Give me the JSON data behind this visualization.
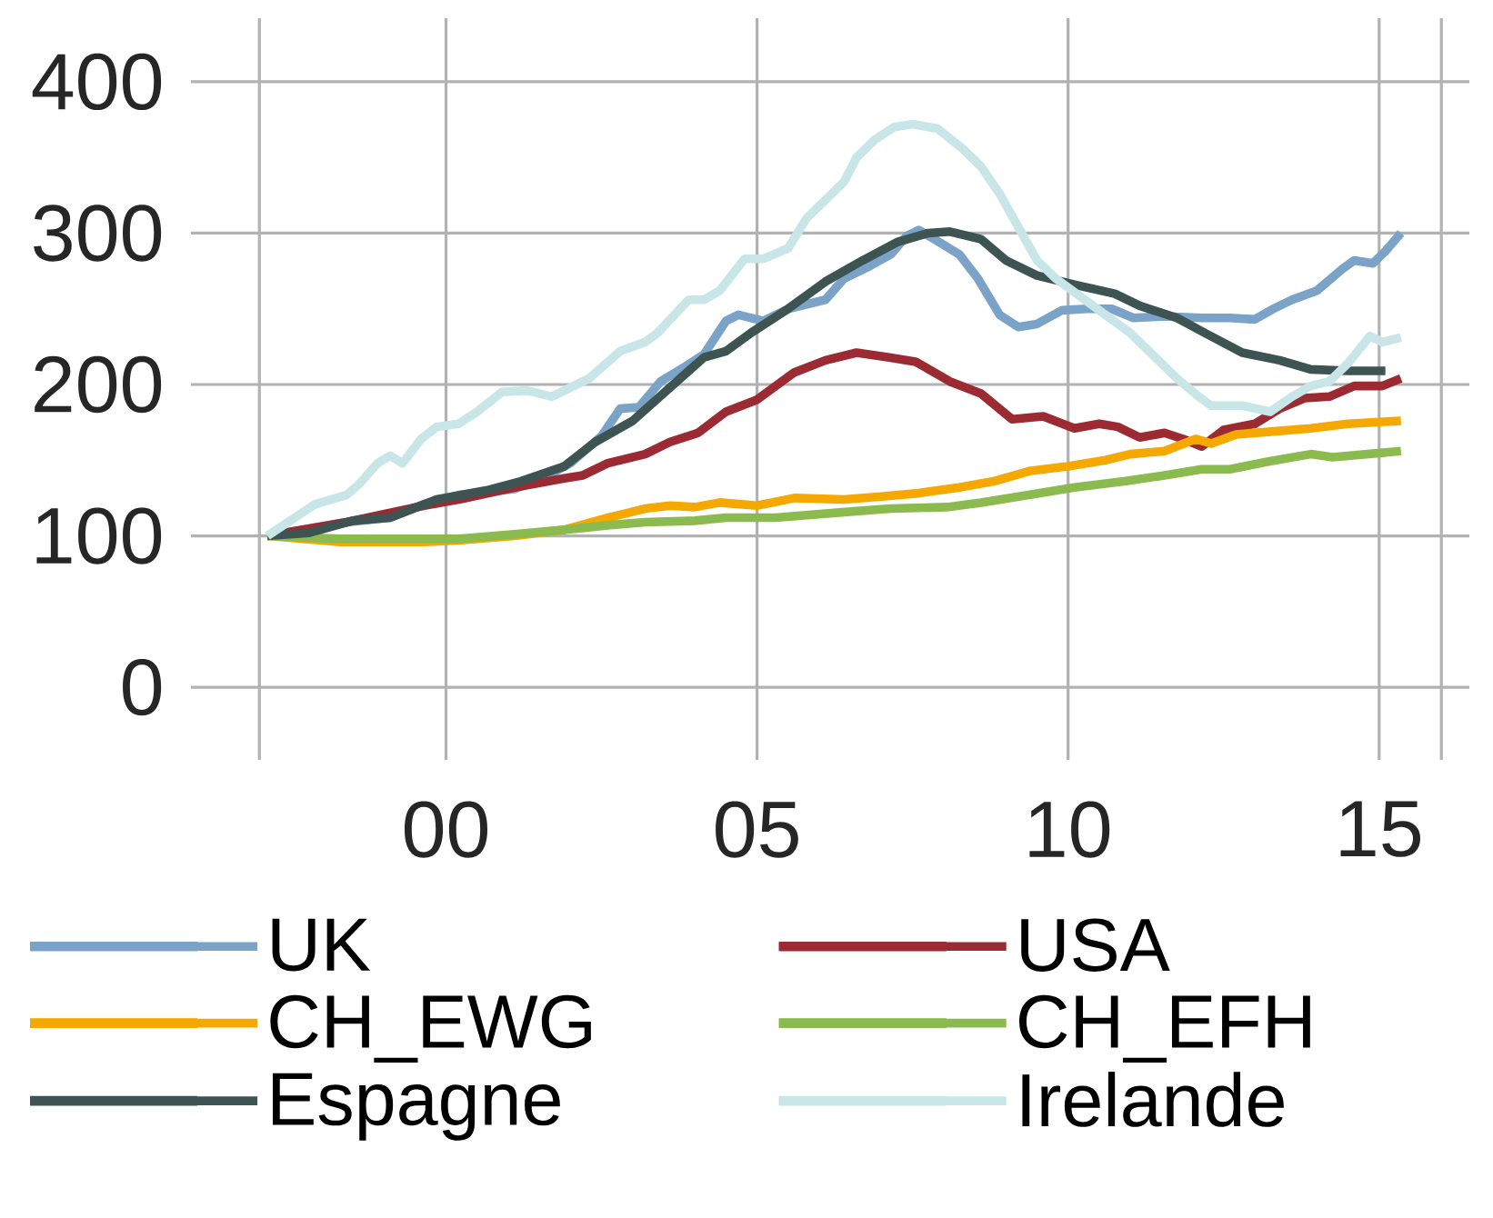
{
  "chart_data": {
    "type": "line",
    "xlim": [
      1995.9,
      2016.45
    ],
    "ylim": [
      -48,
      442
    ],
    "xticks": [
      {
        "value": 1997,
        "label": null
      },
      {
        "value": 2000,
        "label": "00"
      },
      {
        "value": 2005,
        "label": "05"
      },
      {
        "value": 2010,
        "label": "10"
      },
      {
        "value": 2015,
        "label": "15"
      },
      {
        "value": 2016,
        "label": null
      }
    ],
    "yticks": [
      0,
      100,
      200,
      300,
      400
    ],
    "grid": true,
    "legend": "bottom",
    "series": [
      {
        "name": "UK",
        "color": "#7ba3c8",
        "x": [
          1997.13,
          1998.4,
          1999.1,
          1999.65,
          2000.2,
          2001.1,
          2001.6,
          2002.0,
          2002.5,
          2002.8,
          2003.1,
          2003.45,
          2003.85,
          2004.15,
          2004.5,
          2004.7,
          2005.1,
          2005.5,
          2006.1,
          2006.4,
          2006.8,
          2007.15,
          2007.4,
          2007.6,
          2007.85,
          2008.25,
          2008.55,
          2008.9,
          2009.2,
          2009.5,
          2009.9,
          2010.3,
          2010.7,
          2011.05,
          2011.55,
          2012.15,
          2012.6,
          2013.0,
          2013.3,
          2013.6,
          2014.0,
          2014.4,
          2014.6,
          2014.9,
          2015.1,
          2015.35
        ],
        "values": [
          100,
          109,
          112,
          121,
          127,
          131,
          139,
          148,
          166,
          184,
          185,
          202,
          212,
          220,
          242,
          246,
          242,
          250,
          256,
          270,
          278,
          286,
          298,
          302,
          296,
          286,
          270,
          246,
          238,
          240,
          249,
          250,
          250,
          244,
          245,
          244,
          244,
          243,
          250,
          256,
          262,
          276,
          282,
          280,
          288,
          300
        ]
      },
      {
        "name": "USA",
        "color": "#9b2a33",
        "x": [
          1997.13,
          1998.4,
          1999.65,
          2000.2,
          2001.1,
          2001.9,
          2002.2,
          2002.6,
          2003.2,
          2003.6,
          2004.05,
          2004.5,
          2005.0,
          2005.6,
          2006.1,
          2006.6,
          2007.1,
          2007.55,
          2008.1,
          2008.6,
          2009.1,
          2009.6,
          2010.1,
          2010.5,
          2010.8,
          2011.15,
          2011.55,
          2011.85,
          2012.15,
          2012.5,
          2013.0,
          2013.4,
          2013.8,
          2014.2,
          2014.6,
          2015.05,
          2015.35
        ],
        "values": [
          100,
          109,
          120,
          124,
          132,
          138,
          140,
          148,
          154,
          162,
          168,
          182,
          190,
          208,
          216,
          221,
          218,
          215,
          202,
          194,
          177,
          179,
          171,
          174,
          172,
          165,
          168,
          164,
          159,
          170,
          174,
          184,
          191,
          192,
          199,
          199,
          204
        ]
      },
      {
        "name": "CH_EWG",
        "color": "#f5a800",
        "x": [
          1997.13,
          1998.3,
          1999.65,
          2000.2,
          2001.1,
          2001.9,
          2002.6,
          2003.2,
          2003.6,
          2004.0,
          2004.4,
          2005.0,
          2005.6,
          2006.4,
          2007.0,
          2007.55,
          2008.25,
          2008.8,
          2009.4,
          2010.0,
          2010.6,
          2011.0,
          2011.55,
          2012.05,
          2012.3,
          2012.7,
          2013.3,
          2013.9,
          2014.5,
          2015.35
        ],
        "values": [
          100,
          96,
          96,
          97,
          100,
          104,
          112,
          118,
          120,
          119,
          122,
          120,
          125,
          124,
          126,
          128,
          132,
          136,
          143,
          146,
          150,
          154,
          156,
          164,
          161,
          167,
          169,
          171,
          174,
          176
        ]
      },
      {
        "name": "CH_EFH",
        "color": "#8bbb4e",
        "x": [
          1997.13,
          1998.3,
          1999.65,
          2000.2,
          2001.1,
          2001.9,
          2002.6,
          2003.2,
          2004.0,
          2004.5,
          2005.3,
          2006.5,
          2007.15,
          2008.05,
          2008.6,
          2009.5,
          2010.1,
          2010.9,
          2011.55,
          2012.15,
          2012.6,
          2013.2,
          2013.9,
          2014.25,
          2015.35
        ],
        "values": [
          100,
          98,
          98,
          98,
          101,
          104,
          107,
          109,
          110,
          112,
          112,
          116,
          118,
          119,
          122,
          128,
          132,
          136,
          140,
          144,
          144,
          149,
          154,
          152,
          156
        ]
      },
      {
        "name": "Espagne",
        "color": "#3d5453",
        "x": [
          1997.13,
          1997.8,
          1998.5,
          1999.1,
          1999.85,
          2000.65,
          2001.2,
          2001.9,
          2002.4,
          2003.0,
          2003.6,
          2004.15,
          2004.5,
          2004.9,
          2005.5,
          2006.1,
          2006.7,
          2007.25,
          2007.75,
          2008.1,
          2008.6,
          2009.0,
          2009.5,
          2010.1,
          2010.75,
          2011.15,
          2011.75,
          2012.2,
          2012.8,
          2013.4,
          2013.9,
          2014.5,
          2015.1
        ],
        "values": [
          100,
          102,
          110,
          112,
          124,
          130,
          136,
          146,
          162,
          176,
          198,
          218,
          222,
          234,
          250,
          268,
          282,
          294,
          300,
          301,
          296,
          282,
          272,
          266,
          260,
          252,
          244,
          234,
          221,
          216,
          210,
          209,
          209
        ]
      },
      {
        "name": "Irelande",
        "color": "#c8e6e8",
        "x": [
          1997.13,
          1997.9,
          1998.4,
          1998.6,
          1998.9,
          1999.1,
          1999.3,
          1999.6,
          1999.85,
          2000.2,
          2000.5,
          2000.9,
          2001.3,
          2001.7,
          2002.0,
          2002.3,
          2002.8,
          2003.2,
          2003.4,
          2003.9,
          2004.15,
          2004.4,
          2004.8,
          2005.1,
          2005.5,
          2005.8,
          2006.1,
          2006.4,
          2006.6,
          2006.9,
          2007.2,
          2007.5,
          2007.9,
          2008.3,
          2008.6,
          2008.9,
          2009.2,
          2009.5,
          2009.8,
          2010.2,
          2010.6,
          2011.0,
          2011.35,
          2011.75,
          2012.1,
          2012.3,
          2012.8,
          2013.25,
          2013.6,
          2013.9,
          2014.2,
          2014.5,
          2014.85,
          2015.05,
          2015.35
        ],
        "values": [
          100,
          121,
          127,
          134,
          148,
          153,
          148,
          164,
          172,
          174,
          182,
          195,
          196,
          192,
          198,
          204,
          222,
          228,
          234,
          256,
          256,
          262,
          283,
          283,
          290,
          310,
          322,
          334,
          350,
          362,
          370,
          372,
          369,
          356,
          344,
          326,
          304,
          282,
          270,
          258,
          246,
          234,
          220,
          204,
          192,
          186,
          186,
          182,
          192,
          199,
          202,
          214,
          232,
          228,
          231
        ]
      }
    ]
  }
}
